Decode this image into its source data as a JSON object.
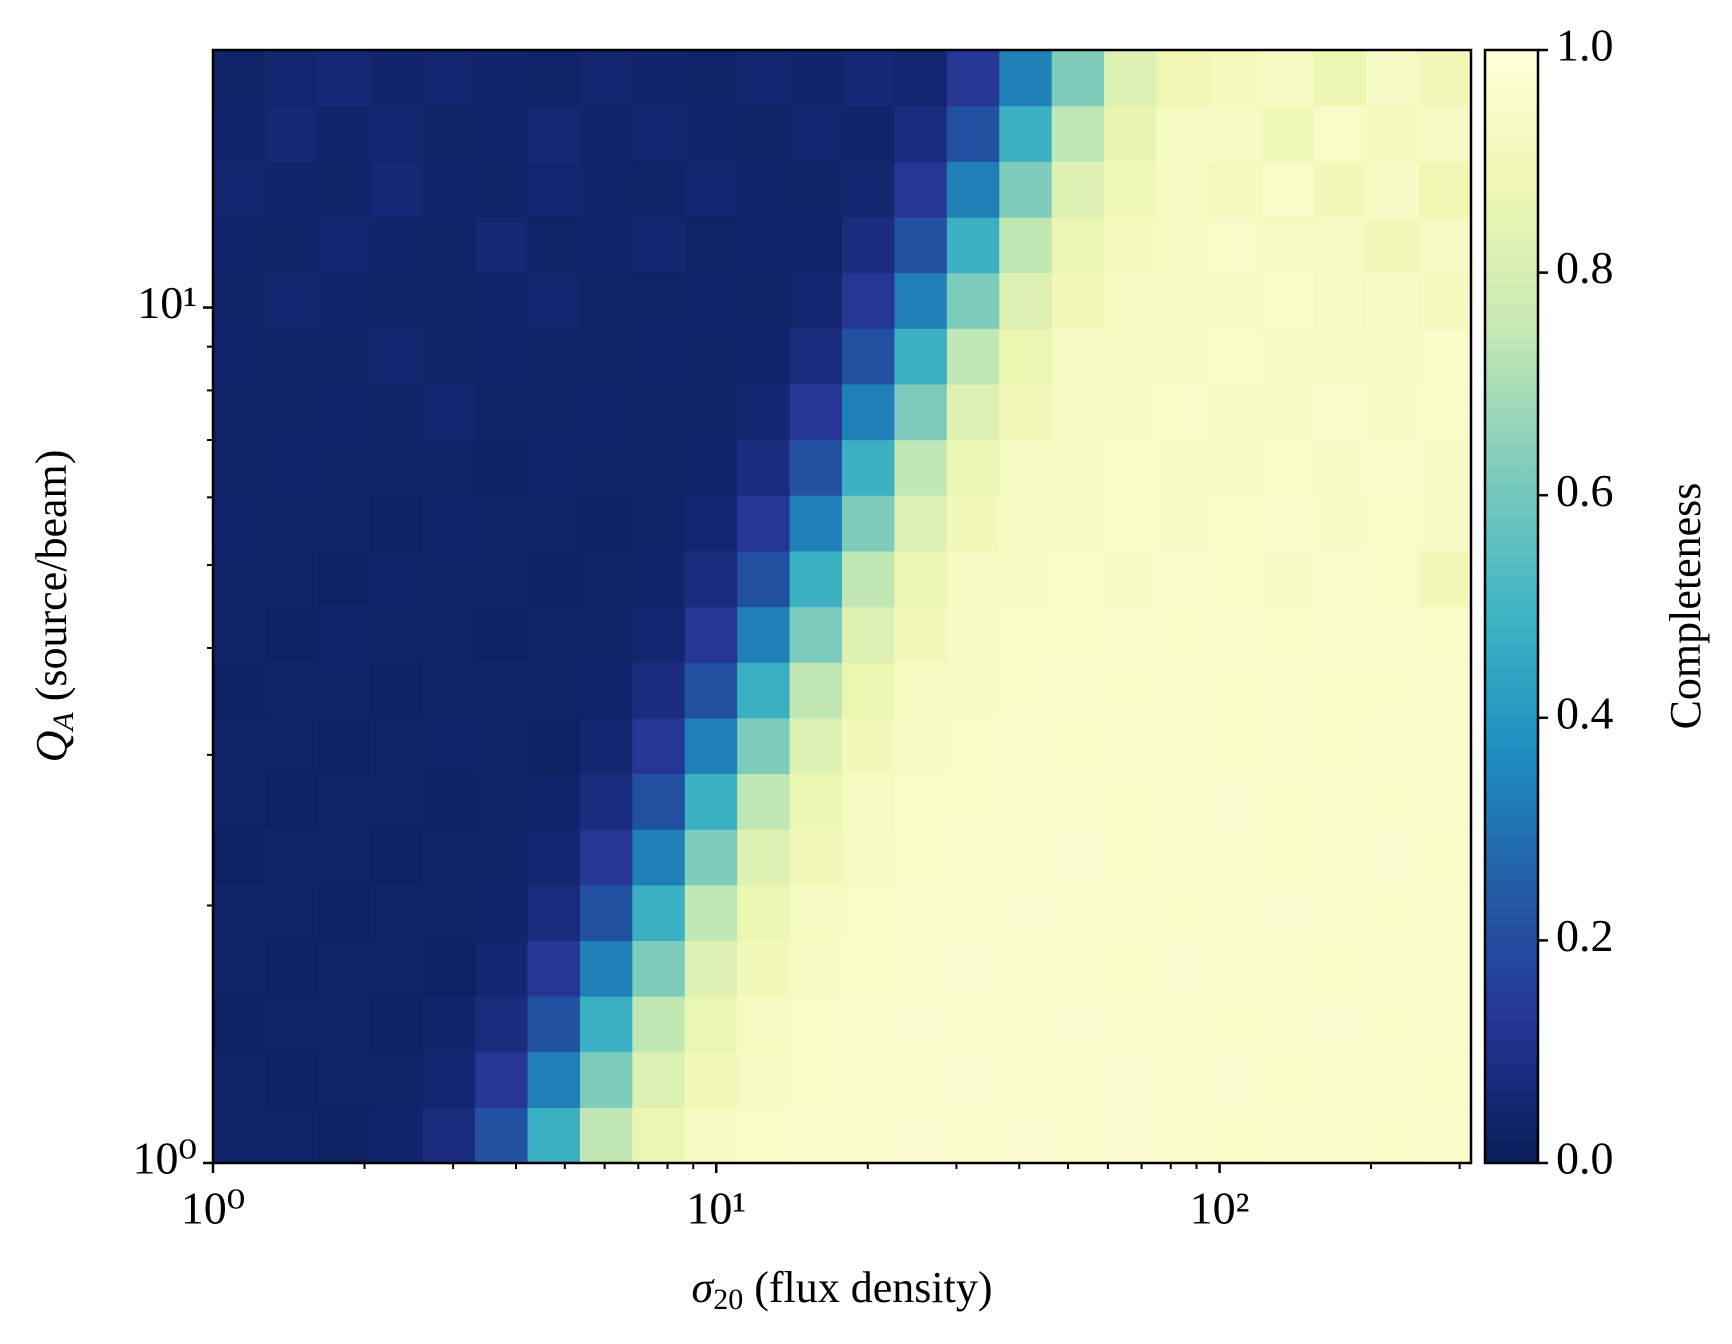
{
  "chart_data": {
    "type": "heatmap",
    "xlabel": {
      "symbol": "σ",
      "subscript": "20",
      "text": " (flux density)"
    },
    "ylabel": {
      "symbol": "Q",
      "subscript": "A",
      "text": " (source/beam)"
    },
    "colorbar_label": "Completeness",
    "xscale": "log",
    "yscale": "log",
    "xlim": [
      1,
      316
    ],
    "ylim": [
      1,
      20
    ],
    "xticks": [
      {
        "value": 1,
        "label": "10⁰"
      },
      {
        "value": 10,
        "label": "10¹"
      },
      {
        "value": 100,
        "label": "10²"
      }
    ],
    "xminorticks": [
      2,
      3,
      4,
      5,
      6,
      7,
      8,
      9,
      20,
      30,
      40,
      50,
      60,
      70,
      80,
      90,
      200,
      300
    ],
    "yticks": [
      {
        "value": 1,
        "label": "10⁰"
      },
      {
        "value": 10,
        "label": "10¹"
      }
    ],
    "yminorticks": [
      2,
      3,
      4,
      5,
      6,
      7,
      8,
      9
    ],
    "colormap": "YlGnBu",
    "clim": [
      0,
      1
    ],
    "cticks": [
      {
        "value": 0,
        "label": "0.0"
      },
      0.2,
      0.4,
      0.6,
      0.8,
      {
        "value": 1,
        "label": "1.0"
      }
    ],
    "z": [
      [
        0.03,
        0.03,
        0.02,
        0.04,
        0.08,
        0.21,
        0.48,
        0.74,
        0.87,
        0.92,
        0.95,
        0.96,
        0.96,
        0.97,
        0.96,
        0.97,
        0.96,
        0.97,
        0.96,
        0.95,
        0.96,
        0.96,
        0.95,
        0.96
      ],
      [
        0.03,
        0.02,
        0.03,
        0.03,
        0.05,
        0.13,
        0.33,
        0.62,
        0.82,
        0.9,
        0.93,
        0.95,
        0.96,
        0.96,
        0.97,
        0.96,
        0.96,
        0.97,
        0.96,
        0.97,
        0.95,
        0.96,
        0.96,
        0.95
      ],
      [
        0.02,
        0.03,
        0.03,
        0.02,
        0.04,
        0.08,
        0.21,
        0.48,
        0.74,
        0.87,
        0.92,
        0.95,
        0.96,
        0.97,
        0.96,
        0.96,
        0.97,
        0.96,
        0.96,
        0.95,
        0.96,
        0.97,
        0.95,
        0.96
      ],
      [
        0.03,
        0.02,
        0.03,
        0.03,
        0.02,
        0.05,
        0.13,
        0.33,
        0.62,
        0.82,
        0.9,
        0.93,
        0.95,
        0.96,
        0.97,
        0.96,
        0.96,
        0.95,
        0.97,
        0.96,
        0.96,
        0.95,
        0.96,
        0.96
      ],
      [
        0.03,
        0.03,
        0.02,
        0.03,
        0.03,
        0.04,
        0.08,
        0.21,
        0.48,
        0.74,
        0.87,
        0.92,
        0.95,
        0.96,
        0.96,
        0.97,
        0.96,
        0.96,
        0.95,
        0.96,
        0.97,
        0.96,
        0.95,
        0.96
      ],
      [
        0.02,
        0.03,
        0.03,
        0.02,
        0.03,
        0.03,
        0.05,
        0.13,
        0.33,
        0.62,
        0.82,
        0.9,
        0.93,
        0.95,
        0.96,
        0.96,
        0.97,
        0.95,
        0.96,
        0.96,
        0.95,
        0.96,
        0.97,
        0.95
      ],
      [
        0.03,
        0.02,
        0.03,
        0.03,
        0.02,
        0.03,
        0.04,
        0.08,
        0.21,
        0.48,
        0.74,
        0.87,
        0.92,
        0.95,
        0.95,
        0.96,
        0.96,
        0.95,
        0.96,
        0.97,
        0.95,
        0.96,
        0.95,
        0.96
      ],
      [
        0.03,
        0.03,
        0.02,
        0.03,
        0.04,
        0.03,
        0.02,
        0.05,
        0.13,
        0.33,
        0.62,
        0.82,
        0.9,
        0.93,
        0.95,
        0.96,
        0.95,
        0.96,
        0.96,
        0.95,
        0.96,
        0.95,
        0.96,
        0.96
      ],
      [
        0.02,
        0.03,
        0.03,
        0.02,
        0.03,
        0.03,
        0.03,
        0.04,
        0.08,
        0.21,
        0.48,
        0.74,
        0.87,
        0.92,
        0.94,
        0.95,
        0.96,
        0.95,
        0.96,
        0.95,
        0.96,
        0.95,
        0.95,
        0.96
      ],
      [
        0.03,
        0.02,
        0.04,
        0.03,
        0.03,
        0.02,
        0.03,
        0.03,
        0.05,
        0.13,
        0.33,
        0.62,
        0.82,
        0.9,
        0.93,
        0.95,
        0.95,
        0.96,
        0.95,
        0.96,
        0.95,
        0.96,
        0.96,
        0.95
      ],
      [
        0.03,
        0.03,
        0.02,
        0.04,
        0.03,
        0.03,
        0.02,
        0.03,
        0.04,
        0.08,
        0.21,
        0.48,
        0.74,
        0.87,
        0.92,
        0.94,
        0.95,
        0.94,
        0.96,
        0.95,
        0.94,
        0.96,
        0.95,
        0.9
      ],
      [
        0.04,
        0.03,
        0.03,
        0.02,
        0.04,
        0.03,
        0.03,
        0.02,
        0.03,
        0.05,
        0.13,
        0.33,
        0.62,
        0.82,
        0.9,
        0.93,
        0.94,
        0.95,
        0.94,
        0.95,
        0.96,
        0.94,
        0.95,
        0.94
      ],
      [
        0.03,
        0.04,
        0.03,
        0.03,
        0.03,
        0.02,
        0.04,
        0.03,
        0.03,
        0.04,
        0.08,
        0.21,
        0.48,
        0.74,
        0.87,
        0.92,
        0.93,
        0.95,
        0.94,
        0.93,
        0.95,
        0.94,
        0.96,
        0.94
      ],
      [
        0.03,
        0.03,
        0.04,
        0.03,
        0.05,
        0.03,
        0.03,
        0.04,
        0.03,
        0.03,
        0.05,
        0.13,
        0.33,
        0.62,
        0.82,
        0.9,
        0.93,
        0.94,
        0.95,
        0.93,
        0.94,
        0.96,
        0.93,
        0.95
      ],
      [
        0.04,
        0.03,
        0.03,
        0.05,
        0.03,
        0.04,
        0.03,
        0.03,
        0.04,
        0.03,
        0.04,
        0.08,
        0.21,
        0.48,
        0.74,
        0.87,
        0.92,
        0.93,
        0.94,
        0.95,
        0.93,
        0.94,
        0.92,
        0.95
      ],
      [
        0.03,
        0.05,
        0.04,
        0.03,
        0.03,
        0.04,
        0.05,
        0.03,
        0.03,
        0.04,
        0.03,
        0.05,
        0.13,
        0.33,
        0.62,
        0.82,
        0.9,
        0.92,
        0.94,
        0.93,
        0.95,
        0.92,
        0.94,
        0.91
      ],
      [
        0.04,
        0.03,
        0.05,
        0.04,
        0.03,
        0.06,
        0.03,
        0.04,
        0.05,
        0.03,
        0.04,
        0.04,
        0.08,
        0.21,
        0.48,
        0.74,
        0.87,
        0.91,
        0.93,
        0.95,
        0.92,
        0.94,
        0.9,
        0.93
      ],
      [
        0.05,
        0.04,
        0.03,
        0.06,
        0.04,
        0.03,
        0.05,
        0.04,
        0.03,
        0.05,
        0.04,
        0.03,
        0.05,
        0.13,
        0.33,
        0.62,
        0.82,
        0.89,
        0.93,
        0.91,
        0.95,
        0.9,
        0.94,
        0.88
      ],
      [
        0.04,
        0.06,
        0.04,
        0.05,
        0.03,
        0.04,
        0.06,
        0.04,
        0.05,
        0.04,
        0.03,
        0.05,
        0.04,
        0.08,
        0.21,
        0.48,
        0.74,
        0.86,
        0.92,
        0.94,
        0.89,
        0.95,
        0.91,
        0.93
      ],
      [
        0.03,
        0.05,
        0.06,
        0.04,
        0.05,
        0.04,
        0.03,
        0.05,
        0.04,
        0.03,
        0.05,
        0.04,
        0.06,
        0.05,
        0.13,
        0.33,
        0.62,
        0.82,
        0.88,
        0.91,
        0.93,
        0.87,
        0.94,
        0.9
      ]
    ]
  }
}
